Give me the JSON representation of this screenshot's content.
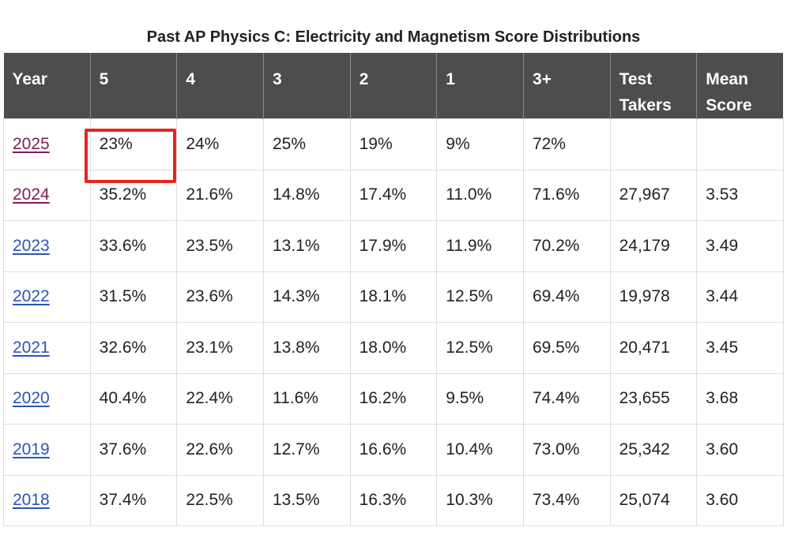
{
  "title": "Past AP Physics C: Electricity and Magnetism Score Distributions",
  "headers": {
    "year": "Year",
    "s5": "5",
    "s4": "4",
    "s3": "3",
    "s2": "2",
    "s1": "1",
    "s3plus": "3+",
    "test_takers": "Test Takers",
    "mean_score": "Mean Score"
  },
  "rows": [
    {
      "year": "2025",
      "s5": "23%",
      "s4": "24%",
      "s3": "25%",
      "s2": "19%",
      "s1": "9%",
      "s3plus": "72%",
      "test_takers": "",
      "mean_score": ""
    },
    {
      "year": "2024",
      "s5": "35.2%",
      "s4": "21.6%",
      "s3": "14.8%",
      "s2": "17.4%",
      "s1": "11.0%",
      "s3plus": "71.6%",
      "test_takers": "27,967",
      "mean_score": "3.53"
    },
    {
      "year": "2023",
      "s5": "33.6%",
      "s4": "23.5%",
      "s3": "13.1%",
      "s2": "17.9%",
      "s1": "11.9%",
      "s3plus": "70.2%",
      "test_takers": "24,179",
      "mean_score": "3.49"
    },
    {
      "year": "2022",
      "s5": "31.5%",
      "s4": "23.6%",
      "s3": "14.3%",
      "s2": "18.1%",
      "s1": "12.5%",
      "s3plus": "69.4%",
      "test_takers": "19,978",
      "mean_score": "3.44"
    },
    {
      "year": "2021",
      "s5": "32.6%",
      "s4": "23.1%",
      "s3": "13.8%",
      "s2": "18.0%",
      "s1": "12.5%",
      "s3plus": "69.5%",
      "test_takers": "20,471",
      "mean_score": "3.45"
    },
    {
      "year": "2020",
      "s5": "40.4%",
      "s4": "22.4%",
      "s3": "11.6%",
      "s2": "16.2%",
      "s1": "9.5%",
      "s3plus": "74.4%",
      "test_takers": "23,655",
      "mean_score": "3.68"
    },
    {
      "year": "2019",
      "s5": "37.6%",
      "s4": "22.6%",
      "s3": "12.7%",
      "s2": "16.6%",
      "s1": "10.4%",
      "s3plus": "73.0%",
      "test_takers": "25,342",
      "mean_score": "3.60"
    },
    {
      "year": "2018",
      "s5": "37.4%",
      "s4": "22.5%",
      "s3": "13.5%",
      "s2": "16.3%",
      "s1": "10.3%",
      "s3plus": "73.4%",
      "test_takers": "25,074",
      "mean_score": "3.60"
    }
  ],
  "colors": {
    "header_bg": "#4d4d4d",
    "link": "#2a55b8",
    "visited_link": "#7a1f56",
    "highlight": "#e8241c"
  }
}
